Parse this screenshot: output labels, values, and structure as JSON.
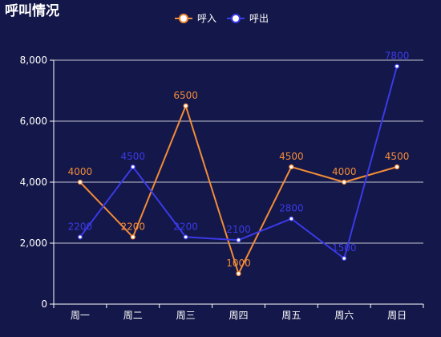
{
  "chart_data": {
    "type": "line",
    "title": "呼叫情况",
    "categories": [
      "周一",
      "周二",
      "周三",
      "周四",
      "周五",
      "周六",
      "周日"
    ],
    "series": [
      {
        "name": "呼入",
        "color": "#f28c38",
        "values": [
          4000,
          2200,
          6500,
          1000,
          4500,
          4000,
          4500
        ]
      },
      {
        "name": "呼出",
        "color": "#3a3ae8",
        "values": [
          2200,
          4500,
          2200,
          2100,
          2800,
          1500,
          7800
        ]
      }
    ],
    "y_ticks": [
      "0",
      "2,000",
      "4,000",
      "6,000",
      "8,000"
    ],
    "ylim": [
      0,
      8000
    ],
    "grid": true,
    "legend_position": "top-center"
  }
}
